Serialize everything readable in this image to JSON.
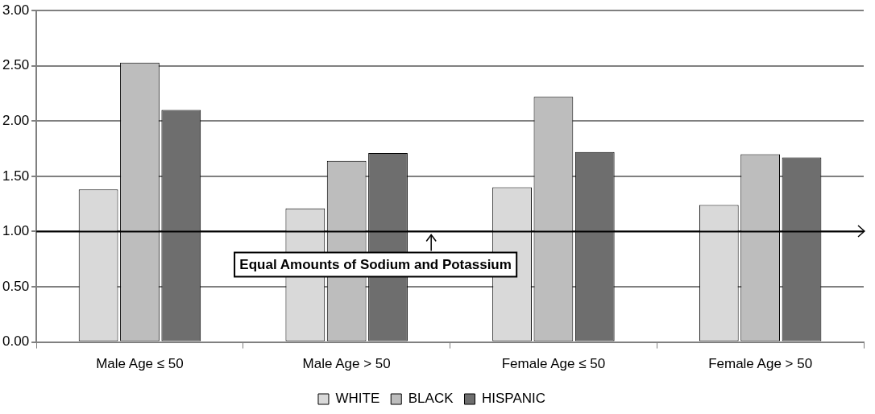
{
  "chart_data": {
    "type": "bar",
    "categories": [
      "Male Age ≤ 50",
      "Male Age > 50",
      "Female Age ≤ 50",
      "Female Age > 50"
    ],
    "series": [
      {
        "name": "WHITE",
        "color": "#d9d9d9",
        "values": [
          1.38,
          1.21,
          1.4,
          1.24
        ]
      },
      {
        "name": "BLACK",
        "color": "#bdbdbd",
        "values": [
          2.53,
          1.64,
          2.22,
          1.7
        ]
      },
      {
        "name": "HISPANIC",
        "color": "#6e6e6e",
        "values": [
          2.1,
          1.71,
          1.72,
          1.67
        ]
      }
    ],
    "ylim": [
      0,
      3
    ],
    "yticks": [
      {
        "value": 0,
        "label": "0.00"
      },
      {
        "value": 0.5,
        "label": "0.50"
      },
      {
        "value": 1,
        "label": "1.00"
      },
      {
        "value": 1.5,
        "label": "1.50"
      },
      {
        "value": 2,
        "label": "2.00"
      },
      {
        "value": 2.5,
        "label": "2.50"
      },
      {
        "value": 3,
        "label": "3.00"
      }
    ],
    "ref_lines": [
      {
        "axis": "y",
        "value": 1,
        "label": "Equal Amounts of Sodium and Potassium",
        "color": "#000000"
      }
    ],
    "grid": "y",
    "legend": "bottom"
  }
}
